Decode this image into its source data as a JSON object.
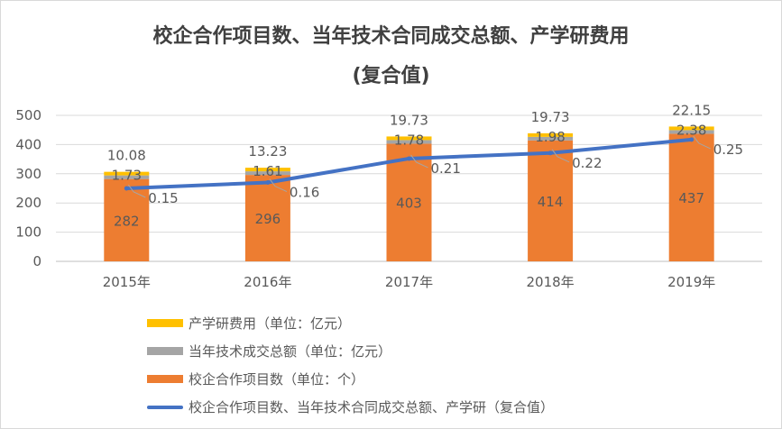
{
  "title": {
    "line1": "校企合作项目数、当年技术合同成交总额、产学研费用",
    "line2": "(复合值)"
  },
  "chart_data": {
    "type": "bar",
    "stacked": true,
    "categories": [
      "2015年",
      "2016年",
      "2017年",
      "2018年",
      "2019年"
    ],
    "ylim": [
      0,
      500
    ],
    "yticks": [
      0,
      100,
      200,
      300,
      400,
      500
    ],
    "grid": true,
    "legend_position": "bottom-left",
    "series": [
      {
        "name": "校企合作项目数（单位：个）",
        "type": "bar",
        "color": "#ed7d31",
        "values": [
          282,
          296,
          403,
          414,
          437
        ],
        "labels": [
          "282",
          "296",
          "403",
          "414",
          "437"
        ]
      },
      {
        "name": "当年技术成交总额（单位：亿元）",
        "type": "bar",
        "color": "#a5a5a5",
        "values": [
          1.73,
          1.61,
          1.78,
          1.98,
          2.38
        ],
        "labels": [
          "1.73",
          "1.61",
          "1.78",
          "1.98",
          "2.38"
        ]
      },
      {
        "name": "产学研费用（单位：亿元）",
        "type": "bar",
        "color": "#ffc000",
        "values": [
          10.08,
          13.23,
          19.73,
          19.73,
          22.15
        ],
        "labels": [
          "10.08",
          "13.23",
          "19.73",
          "19.73",
          "22.15"
        ]
      },
      {
        "name": "校企合作项目数、当年技术合同成交总额、产学研（复合值）",
        "type": "line",
        "color": "#4472c4",
        "values": [
          250,
          270,
          352,
          371,
          417
        ],
        "labels": [
          "0.15",
          "0.16",
          "0.21",
          "0.22",
          "0.25"
        ]
      }
    ]
  }
}
